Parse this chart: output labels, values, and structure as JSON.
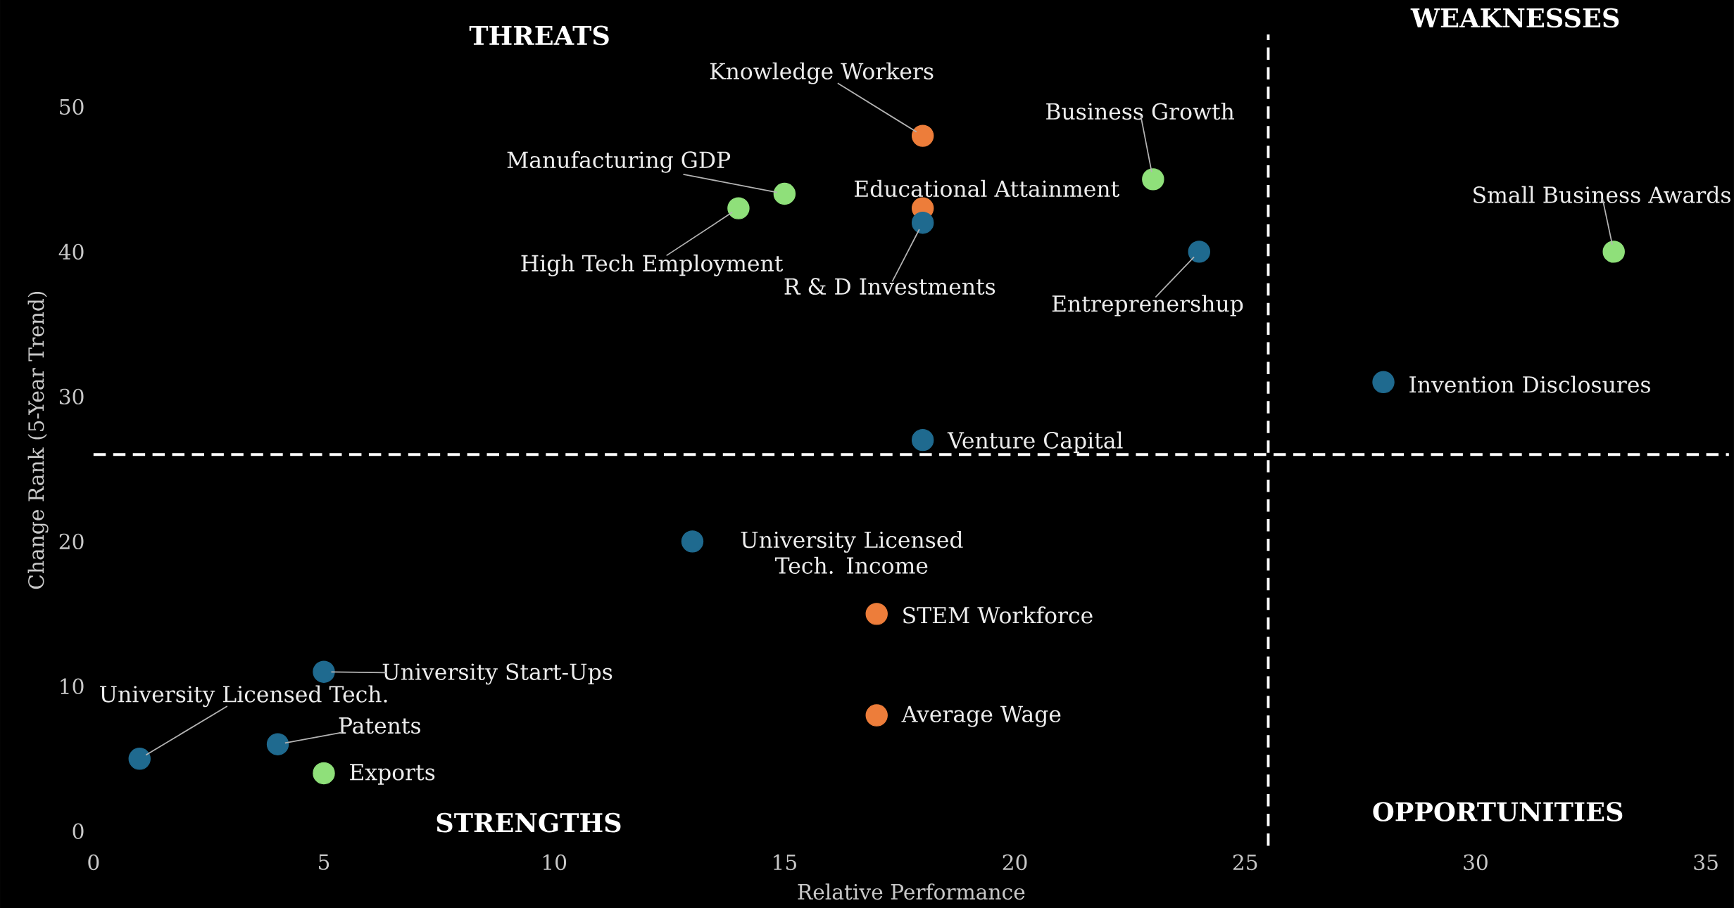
{
  "chart_data": {
    "type": "scatter",
    "xlabel": "Relative Performance",
    "ylabel": "Change Rank (5-Year Trend)",
    "x": [
      18,
      23,
      15,
      14,
      18,
      18,
      24,
      33,
      28,
      18,
      13,
      17,
      5,
      1,
      4,
      5,
      17
    ],
    "values": [
      48,
      45,
      44,
      43,
      43,
      42,
      40,
      40,
      31,
      27,
      20,
      15,
      11,
      5,
      6,
      4,
      8
    ],
    "colors": [
      "#ed7d3a",
      "#8fe07a",
      "#8fe07a",
      "#8fe07a",
      "#ed7d3a",
      "#1f6a8f",
      "#1f6a8f",
      "#8fe07a",
      "#1f6a8f",
      "#1f6a8f",
      "#1f6a8f",
      "#ed7d3a",
      "#1f6a8f",
      "#1f6a8f",
      "#1f6a8f",
      "#8fe07a",
      "#ed7d3a"
    ],
    "marker": "circle",
    "xlim": [
      0,
      35.5
    ],
    "ylim": [
      -1,
      55
    ],
    "xticks": [
      0,
      5,
      10,
      15,
      20,
      25,
      30,
      35
    ],
    "yticks": [
      0,
      10,
      20,
      30,
      40,
      50
    ],
    "ref_lines": [
      {
        "axis": "x",
        "value": 25.5,
        "color": "#ffffff",
        "line_style": "dashed"
      },
      {
        "axis": "y",
        "value": 26,
        "color": "#ffffff",
        "line_style": "dashed"
      }
    ],
    "annotations": [
      "THREATS",
      "WEAKNESSES",
      "STRENGTHS",
      "OPPORTUNITIES",
      {
        "text": "Knowledge Workers",
        "x": 18,
        "y": 48
      },
      {
        "text": "Business Growth",
        "x": 23,
        "y": 45
      },
      {
        "text": "Manufacturing GDP",
        "x": 15,
        "y": 44
      },
      {
        "text": "High Tech Employment",
        "x": 14,
        "y": 43
      },
      {
        "text": "Educational Attainment",
        "x": 18,
        "y": 43
      },
      {
        "text": "R & D Investments",
        "x": 18,
        "y": 42
      },
      {
        "text": "Entreprenershup",
        "x": 24,
        "y": 40
      },
      {
        "text": "Small Business Awards",
        "x": 33,
        "y": 40
      },
      {
        "text": "Invention Disclosures",
        "x": 28,
        "y": 31
      },
      {
        "text": "Venture Capital",
        "x": 18,
        "y": 27
      },
      {
        "text": "University Licensed Tech. Income",
        "x": 13,
        "y": 20
      },
      {
        "text": "STEM Workforce",
        "x": 17,
        "y": 15
      },
      {
        "text": "University Start-Ups",
        "x": 5,
        "y": 11
      },
      {
        "text": "University Licensed Tech.",
        "x": 1,
        "y": 5
      },
      {
        "text": "Patents",
        "x": 4,
        "y": 6
      },
      {
        "text": "Exports",
        "x": 5,
        "y": 4
      },
      {
        "text": "Average Wage",
        "x": 17,
        "y": 8
      }
    ]
  }
}
